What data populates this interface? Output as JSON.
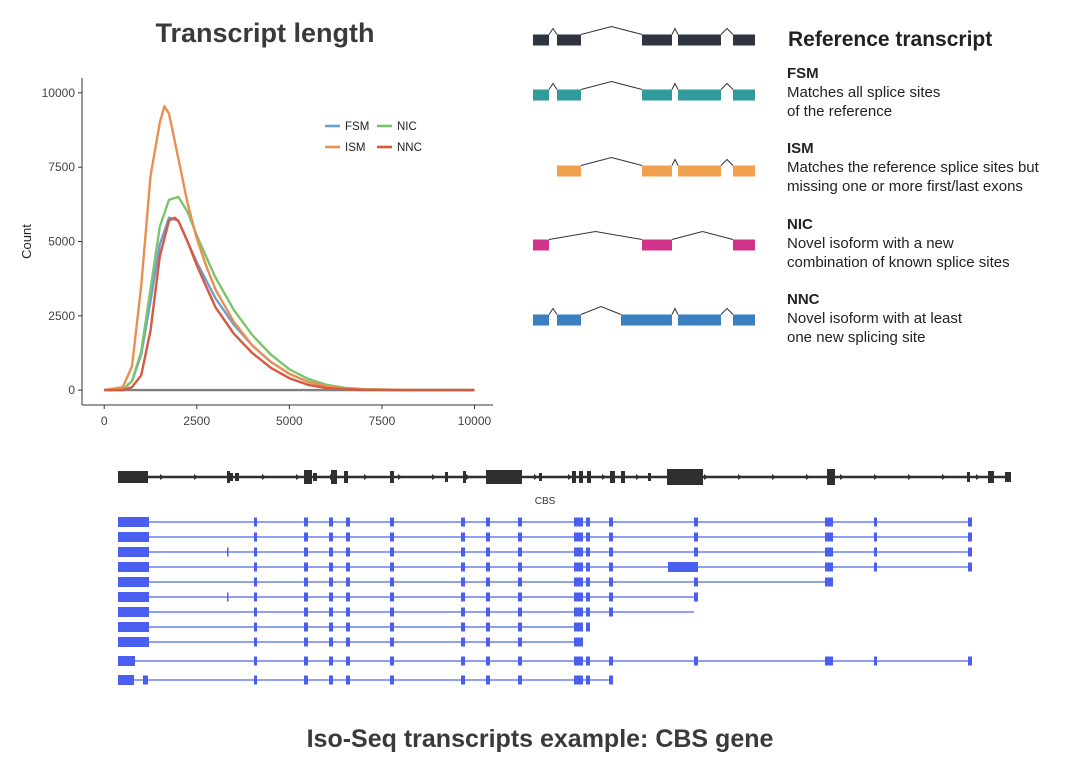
{
  "chart_data": {
    "type": "line",
    "title": "Transcript length",
    "xlabel": "",
    "ylabel": "Count",
    "xlim": [
      -600,
      10500
    ],
    "ylim": [
      -500,
      10500
    ],
    "x_ticks": [
      0,
      2500,
      5000,
      7500,
      10000
    ],
    "y_ticks": [
      0,
      2500,
      5000,
      7500,
      10000
    ],
    "legend_position": "top-right",
    "series": [
      {
        "name": "FSM",
        "color": "#6a9fd4",
        "x": [
          0,
          500,
          750,
          1000,
          1250,
          1500,
          1750,
          2000,
          2250,
          2500,
          2750,
          3000,
          3500,
          4000,
          4500,
          5000,
          5500,
          6000,
          6500,
          7000,
          8000,
          9000,
          10000
        ],
        "y": [
          0,
          20,
          300,
          1200,
          3000,
          4900,
          5800,
          5700,
          5000,
          4300,
          3700,
          3100,
          2200,
          1500,
          950,
          550,
          280,
          120,
          50,
          20,
          5,
          0,
          0
        ]
      },
      {
        "name": "ISM",
        "color": "#ea8f52",
        "x": [
          0,
          500,
          750,
          1000,
          1250,
          1500,
          1625,
          1750,
          2000,
          2250,
          2500,
          2750,
          3000,
          3500,
          4000,
          4500,
          5000,
          5500,
          6000,
          6500,
          7000,
          8000,
          9000,
          10000
        ],
        "y": [
          0,
          100,
          800,
          3500,
          7200,
          9000,
          9550,
          9300,
          7800,
          6300,
          5100,
          4200,
          3400,
          2300,
          1500,
          950,
          550,
          280,
          130,
          50,
          20,
          5,
          0,
          0
        ]
      },
      {
        "name": "NIC",
        "color": "#7dc36d",
        "x": [
          0,
          500,
          750,
          1000,
          1250,
          1500,
          1750,
          2000,
          2250,
          2500,
          2750,
          3000,
          3500,
          4000,
          4500,
          5000,
          5500,
          6000,
          6500,
          7000,
          8000,
          9000,
          10000
        ],
        "y": [
          0,
          20,
          300,
          1300,
          3400,
          5500,
          6400,
          6500,
          6000,
          5200,
          4500,
          3800,
          2700,
          1850,
          1200,
          700,
          380,
          180,
          80,
          30,
          10,
          0,
          0
        ]
      },
      {
        "name": "NNC",
        "color": "#d9583f",
        "x": [
          0,
          500,
          750,
          1000,
          1250,
          1500,
          1750,
          1900,
          2000,
          2250,
          2500,
          2750,
          3000,
          3500,
          4000,
          4500,
          5000,
          5500,
          6000,
          6500,
          7000,
          8000,
          9000,
          10000
        ],
        "y": [
          0,
          0,
          100,
          500,
          2000,
          4500,
          5700,
          5800,
          5700,
          5000,
          4200,
          3500,
          2800,
          1900,
          1250,
          750,
          400,
          180,
          70,
          30,
          10,
          0,
          0,
          0
        ]
      },
      {
        "name": "",
        "color": "#7f7f7f",
        "x": [
          0,
          10000
        ],
        "y": [
          0,
          0
        ]
      }
    ]
  },
  "diagram": {
    "reference_label": "Reference transcript",
    "categories": [
      {
        "name": "FSM",
        "lines": [
          "Matches all splice sites",
          "of the reference"
        ],
        "color": "#319a9a"
      },
      {
        "name": "ISM",
        "lines": [
          "Matches the reference splice sites but",
          "missing one or more first/last exons"
        ],
        "color": "#f0a04f"
      },
      {
        "name": "NIC",
        "lines": [
          "Novel isoform with a new",
          "combination of known splice sites"
        ],
        "color": "#d2338a"
      },
      {
        "name": "NNC",
        "lines": [
          "Novel isoform with at least",
          "one new splicing site"
        ],
        "color": "#3a7fc0"
      }
    ],
    "reference_color": "#2e3440"
  },
  "gene": {
    "label": "CBS",
    "gene_color": "#2f2f2f",
    "transcript_color": "#4a5ff0",
    "transcript_line_color": "#8fa0f0"
  },
  "bottom_title": "Iso-Seq transcripts example: CBS gene"
}
